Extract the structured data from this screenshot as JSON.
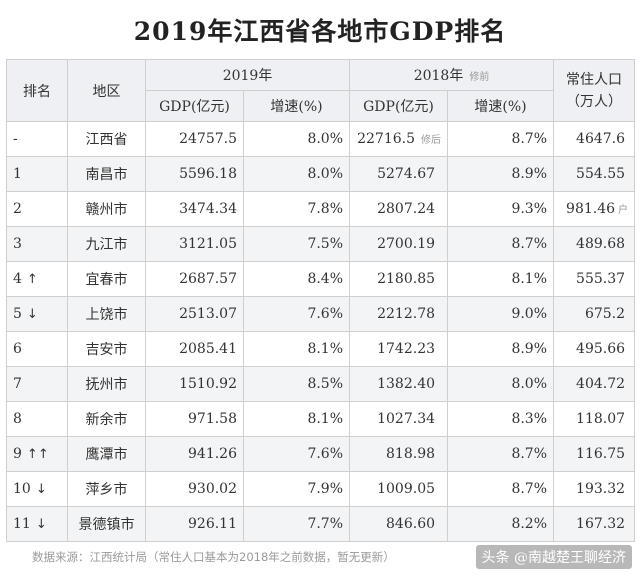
{
  "title": "2019年江西省各地市GDP排名",
  "headers": {
    "rank": "排名",
    "region": "地区",
    "year2019": "2019年",
    "year2018": "2018年",
    "year2018_note": "修前",
    "population": "常住人口（万人）",
    "gdp_col": "GDP(亿元)",
    "growth_col": "增速(%)"
  },
  "rows": [
    {
      "rank": "-",
      "arrow": "",
      "region": "江西省",
      "gdp2019": "24757.5",
      "growth2019": "8.0%",
      "gdp2018": "22716.5",
      "gdp2018_note": "修后",
      "growth2018": "8.7%",
      "population": "4647.6",
      "pop_note": ""
    },
    {
      "rank": "1",
      "arrow": "",
      "region": "南昌市",
      "gdp2019": "5596.18",
      "growth2019": "8.0%",
      "gdp2018": "5274.67",
      "gdp2018_note": "",
      "growth2018": "8.9%",
      "population": "554.55",
      "pop_note": ""
    },
    {
      "rank": "2",
      "arrow": "",
      "region": "赣州市",
      "gdp2019": "3474.34",
      "growth2019": "7.8%",
      "gdp2018": "2807.24",
      "gdp2018_note": "",
      "growth2018": "9.3%",
      "population": "981.46",
      "pop_note": "户"
    },
    {
      "rank": "3",
      "arrow": "",
      "region": "九江市",
      "gdp2019": "3121.05",
      "growth2019": "7.5%",
      "gdp2018": "2700.19",
      "gdp2018_note": "",
      "growth2018": "8.7%",
      "population": "489.68",
      "pop_note": ""
    },
    {
      "rank": "4",
      "arrow": "↑",
      "region": "宜春市",
      "gdp2019": "2687.57",
      "growth2019": "8.4%",
      "gdp2018": "2180.85",
      "gdp2018_note": "",
      "growth2018": "8.1%",
      "population": "555.37",
      "pop_note": ""
    },
    {
      "rank": "5",
      "arrow": "↓",
      "region": "上饶市",
      "gdp2019": "2513.07",
      "growth2019": "7.6%",
      "gdp2018": "2212.78",
      "gdp2018_note": "",
      "growth2018": "9.0%",
      "population": "675.2",
      "pop_note": ""
    },
    {
      "rank": "6",
      "arrow": "",
      "region": "吉安市",
      "gdp2019": "2085.41",
      "growth2019": "8.1%",
      "gdp2018": "1742.23",
      "gdp2018_note": "",
      "growth2018": "8.9%",
      "population": "495.66",
      "pop_note": ""
    },
    {
      "rank": "7",
      "arrow": "",
      "region": "抚州市",
      "gdp2019": "1510.92",
      "growth2019": "8.5%",
      "gdp2018": "1382.40",
      "gdp2018_note": "",
      "growth2018": "8.0%",
      "population": "404.72",
      "pop_note": ""
    },
    {
      "rank": "8",
      "arrow": "",
      "region": "新余市",
      "gdp2019": "971.58",
      "growth2019": "8.1%",
      "gdp2018": "1027.34",
      "gdp2018_note": "",
      "growth2018": "8.3%",
      "population": "118.07",
      "pop_note": ""
    },
    {
      "rank": "9",
      "arrow": "↑↑",
      "region": "鹰潭市",
      "gdp2019": "941.26",
      "growth2019": "7.6%",
      "gdp2018": "818.98",
      "gdp2018_note": "",
      "growth2018": "8.7%",
      "population": "116.75",
      "pop_note": ""
    },
    {
      "rank": "10",
      "arrow": "↓",
      "region": "萍乡市",
      "gdp2019": "930.02",
      "growth2019": "7.9%",
      "gdp2018": "1009.05",
      "gdp2018_note": "",
      "growth2018": "8.7%",
      "population": "193.32",
      "pop_note": ""
    },
    {
      "rank": "11",
      "arrow": "↓",
      "region": "景德镇市",
      "gdp2019": "926.11",
      "growth2019": "7.7%",
      "gdp2018": "846.60",
      "gdp2018_note": "",
      "growth2018": "8.2%",
      "population": "167.32",
      "pop_note": ""
    }
  ],
  "footer": {
    "source": "数据来源：江西统计局（常住人口基本为2018年之前数据，暂无更新）",
    "watermark": "头条 @南越楚王聊经济"
  }
}
